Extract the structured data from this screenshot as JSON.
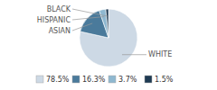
{
  "chart_data": {
    "type": "pie",
    "categories": [
      "WHITE",
      "ASIAN",
      "HISPANIC",
      "BLACK"
    ],
    "values": [
      78.5,
      16.3,
      3.7,
      1.5
    ],
    "value_labels": [
      "78.5%",
      "16.3%",
      "3.7%",
      "1.5%"
    ],
    "colors": [
      "#cdd9e5",
      "#4a7a9b",
      "#8fb8d0",
      "#1e3a52"
    ]
  }
}
